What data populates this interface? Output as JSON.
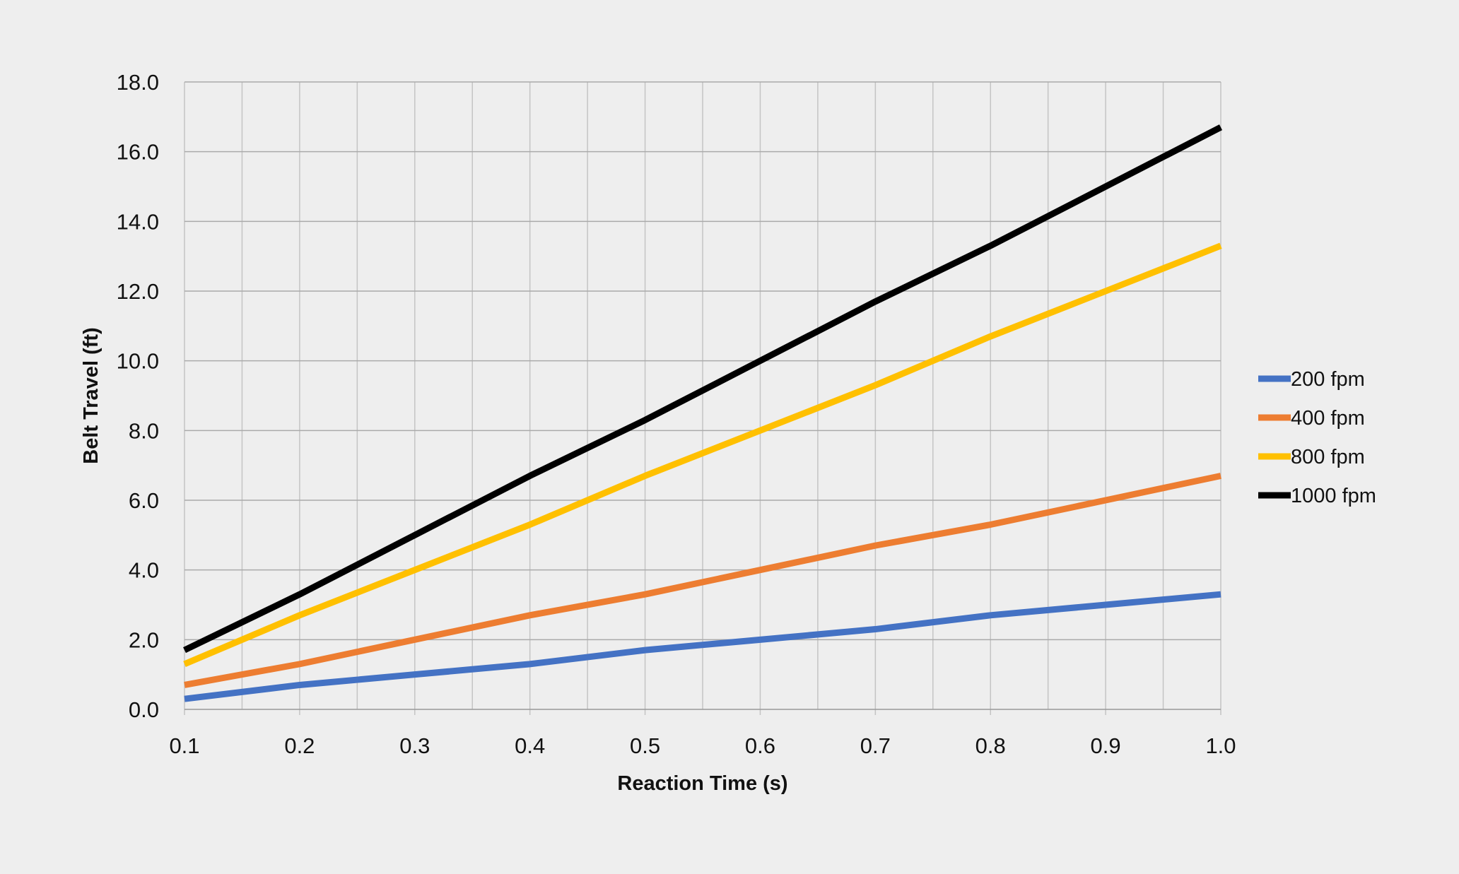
{
  "chart_data": {
    "type": "line",
    "title": "",
    "xlabel": "Reaction Time (s)",
    "ylabel": "Belt Travel (ft)",
    "x": [
      0.1,
      0.2,
      0.3,
      0.4,
      0.5,
      0.6,
      0.7,
      0.8,
      0.9,
      1.0
    ],
    "x_tick_labels": [
      "0.1",
      "0.2",
      "0.3",
      "0.4",
      "0.5",
      "0.6",
      "0.7",
      "0.8",
      "0.9",
      "1.0"
    ],
    "y_tick_labels": [
      "0.0",
      "2.0",
      "4.0",
      "6.0",
      "8.0",
      "10.0",
      "12.0",
      "14.0",
      "16.0",
      "18.0"
    ],
    "xlim": [
      0.1,
      1.0
    ],
    "ylim": [
      0,
      18
    ],
    "grid": true,
    "legend_position": "right",
    "series": [
      {
        "name": "200 fpm",
        "color": "#4472c4",
        "values": [
          0.3,
          0.7,
          1.0,
          1.3,
          1.7,
          2.0,
          2.3,
          2.7,
          3.0,
          3.3
        ]
      },
      {
        "name": "400 fpm",
        "color": "#ed7d31",
        "values": [
          0.7,
          1.3,
          2.0,
          2.7,
          3.3,
          4.0,
          4.7,
          5.3,
          6.0,
          6.7
        ]
      },
      {
        "name": "800 fpm",
        "color": "#ffc000",
        "values": [
          1.3,
          2.7,
          4.0,
          5.3,
          6.7,
          8.0,
          9.3,
          10.7,
          12.0,
          13.3
        ]
      },
      {
        "name": "1000 fpm",
        "color": "#000000",
        "values": [
          1.7,
          3.3,
          5.0,
          6.7,
          8.3,
          10.0,
          11.7,
          13.3,
          15.0,
          16.7
        ]
      }
    ]
  }
}
